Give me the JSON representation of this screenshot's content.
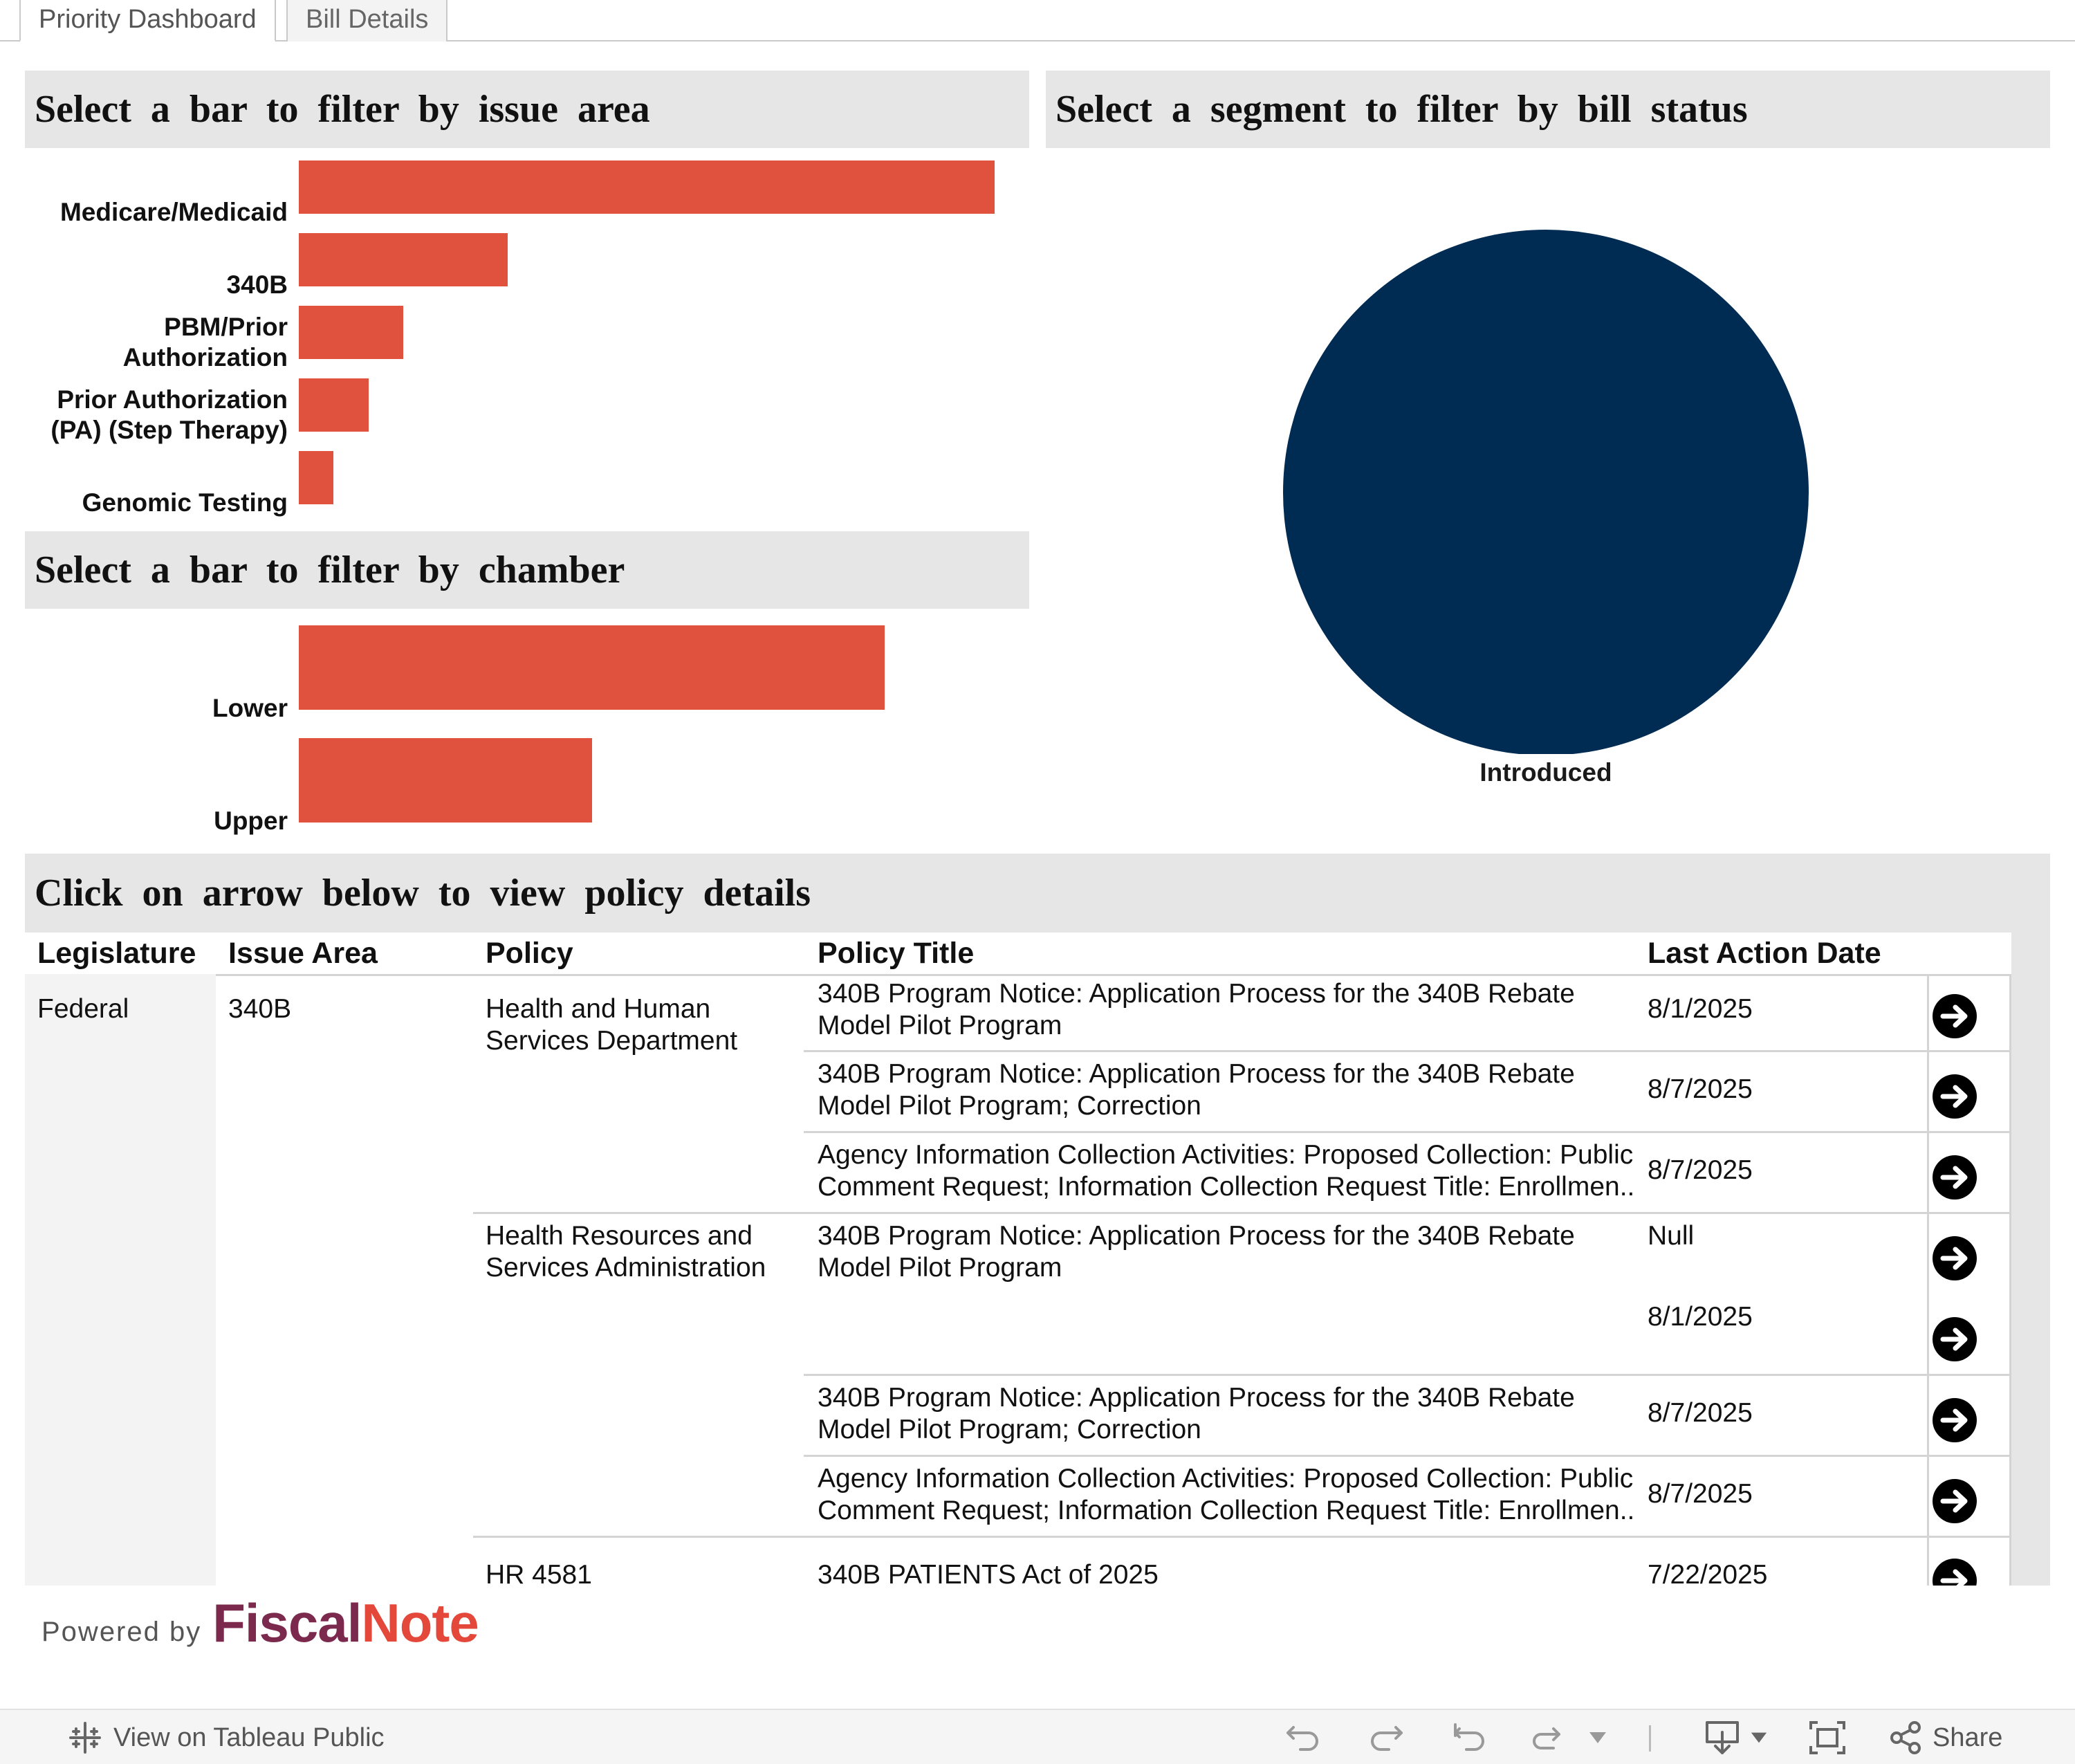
{
  "tabs": [
    {
      "label": "Priority Dashboard",
      "active": true
    },
    {
      "label": "Bill Details",
      "active": false
    }
  ],
  "issue_panel": {
    "title": "Select a bar to filter by issue area"
  },
  "chamber_panel": {
    "title": "Select a bar to filter by chamber"
  },
  "status_panel": {
    "title": "Select a segment to filter by bill status"
  },
  "table_panel": {
    "title": "Click on arrow below to view policy details"
  },
  "chart_data": [
    {
      "type": "bar",
      "orientation": "horizontal",
      "title": "Select a bar to filter by issue area",
      "categories": [
        "Medicare/Medicaid",
        "340B",
        "PBM/Prior Authorization",
        "Prior Authorization (PA) (Step Therapy)",
        "Genomic Testing"
      ],
      "category_lines": [
        [
          "Medicare/Medicaid"
        ],
        [
          "340B"
        ],
        [
          "PBM/Prior",
          "Authorization"
        ],
        [
          "Prior Authorization",
          "(PA) (Step Therapy)"
        ],
        [
          "Genomic Testing"
        ]
      ],
      "values": [
        20,
        6,
        3,
        2,
        1
      ],
      "color": "#e0523e"
    },
    {
      "type": "bar",
      "orientation": "horizontal",
      "title": "Select a bar to filter by chamber",
      "categories": [
        "Lower",
        "Upper"
      ],
      "values": [
        18,
        9
      ],
      "color": "#e0523e"
    },
    {
      "type": "pie",
      "title": "Select a segment to filter by bill status",
      "categories": [
        "Introduced"
      ],
      "values": [
        1
      ],
      "colors": [
        "#002c53"
      ]
    }
  ],
  "table": {
    "headers": [
      "Legislature",
      "Issue Area",
      "Policy",
      "Policy Title",
      "Last Action Date"
    ],
    "legislature": "Federal",
    "issue_area": "340B",
    "groups": [
      {
        "policy": "Health and Human Services Department",
        "rows": [
          {
            "title": "340B Program Notice: Application Process for the 340B Rebate Model Pilot Program",
            "date": "8/1/2025"
          },
          {
            "title": "340B Program Notice: Application Process for the 340B Rebate Model Pilot Program; Correction",
            "date": "8/7/2025"
          },
          {
            "title": "Agency Information Collection Activities: Proposed Collection: Public Comment Request; Information Collection Request Title: Enrollmen..",
            "date": "8/7/2025"
          }
        ]
      },
      {
        "policy": "Health Resources and Services Administration",
        "rows": [
          {
            "title": "340B Program Notice: Application Process for the 340B Rebate Model Pilot Program",
            "date": "Null",
            "date2": "8/1/2025"
          },
          {
            "title": "340B Program Notice: Application Process for the 340B Rebate Model Pilot Program; Correction",
            "date": "8/7/2025"
          },
          {
            "title": "Agency Information Collection Activities: Proposed Collection: Public Comment Request; Information Collection Request Title: Enrollmen..",
            "date": "8/7/2025"
          }
        ]
      },
      {
        "policy": "HR 4581",
        "rows": [
          {
            "title": "340B PATIENTS Act of 2025",
            "date": "7/22/2025"
          }
        ]
      }
    ]
  },
  "branding": {
    "powered_by": "Powered by",
    "brand_part1": "Fiscal",
    "brand_part2": "Note"
  },
  "toolbar": {
    "view_label": "View on Tableau Public",
    "share_label": "Share",
    "icons": [
      "tableau-logo-icon",
      "undo-icon",
      "redo-icon",
      "revert-icon",
      "refresh-icon",
      "dropdown-icon",
      "download-icon",
      "fullscreen-icon",
      "share-icon"
    ]
  },
  "colors": {
    "bar": "#e0523e",
    "pie": "#002c53",
    "header_bg": "#e6e6e6",
    "brand_dark": "#7b2a4e",
    "brand_red": "#e3483a"
  }
}
